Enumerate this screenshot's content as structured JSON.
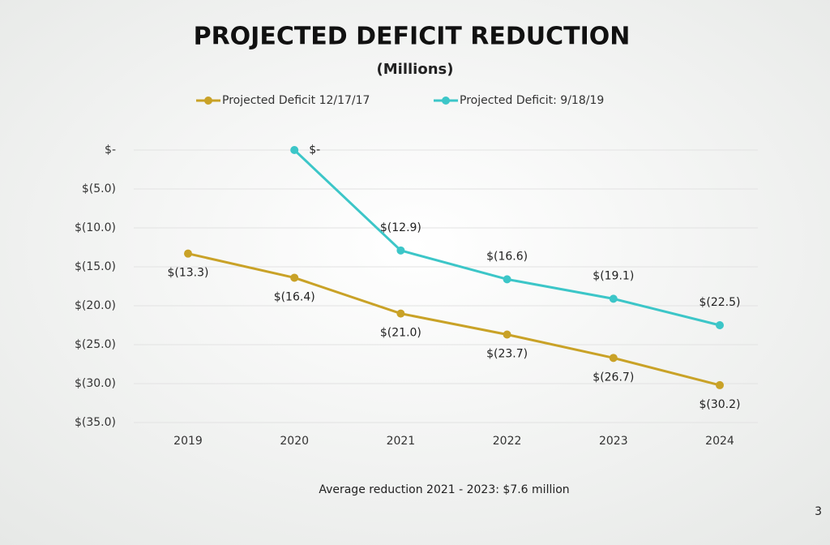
{
  "chart_data": {
    "type": "line",
    "title": "PROJECTED DEFICIT REDUCTION",
    "subtitle": "(Millions)",
    "categories": [
      "2019",
      "2020",
      "2021",
      "2022",
      "2023",
      "2024"
    ],
    "series": [
      {
        "name": "Projected Deficit 12/17/17",
        "color": "#c9a227",
        "values": [
          -13.3,
          -16.4,
          -21.0,
          -23.7,
          -26.7,
          -30.2
        ],
        "value_labels": [
          "$(13.3)",
          "$(16.4)",
          "$(21.0)",
          "$(23.7)",
          "$(26.7)",
          "$(30.2)"
        ]
      },
      {
        "name": "Projected Deficit:  9/18/19",
        "color": "#3cc6c8",
        "values": [
          null,
          0,
          -12.9,
          -16.6,
          -19.1,
          -22.5
        ],
        "value_labels": [
          null,
          "$-",
          "$(12.9)",
          "$(16.6)",
          "$(19.1)",
          "$(22.5)"
        ]
      }
    ],
    "ylim": [
      -35,
      0
    ],
    "yticks": [
      {
        "value": 0,
        "label": "$-"
      },
      {
        "value": -5,
        "label": "$(5.0)"
      },
      {
        "value": -10,
        "label": "$(10.0)"
      },
      {
        "value": -15,
        "label": "$(15.0)"
      },
      {
        "value": -20,
        "label": "$(20.0)"
      },
      {
        "value": -25,
        "label": "$(25.0)"
      },
      {
        "value": -30,
        "label": "$(30.0)"
      },
      {
        "value": -35,
        "label": "$(35.0)"
      }
    ],
    "grid": true,
    "legend_position": "top",
    "annotation": "Average reduction 2021 - 2023:  $7.6 million",
    "page_number": "3"
  }
}
